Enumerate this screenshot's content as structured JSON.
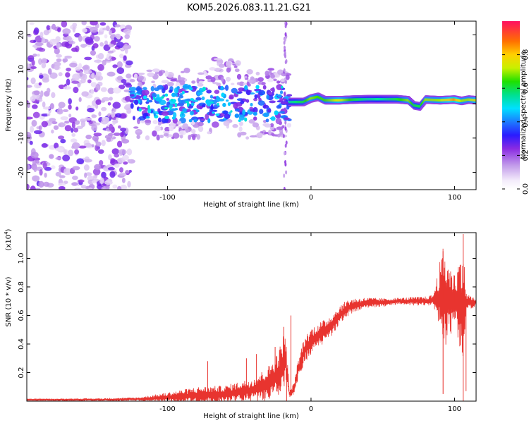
{
  "figure_title": "KOM5.2026.083.11.21.G21",
  "colors": {
    "spectrogram_purple": "#8a2be2",
    "snr_line": "#e8342f",
    "frame": "#000000"
  },
  "chart_data": [
    {
      "type": "heatmap",
      "name": "spectrogram",
      "title": "",
      "xlabel": "Height of straight line (km)",
      "ylabel": "Frequency (Hz)",
      "xlim": [
        -198,
        115
      ],
      "ylim": [
        -25,
        24
      ],
      "x_ticks": [
        -100,
        0,
        100
      ],
      "x_tick_labels": [
        "-100",
        "0",
        "100"
      ],
      "y_ticks": [
        -20,
        -10,
        0,
        10,
        20
      ],
      "y_tick_labels": [
        "-20",
        "-10",
        "0",
        "10",
        "20"
      ],
      "colorbar": {
        "label": "Normalized spectral amplitude",
        "range": [
          0.0,
          1.0
        ],
        "ticks": [
          0.0,
          0.2,
          0.4,
          0.6,
          0.8
        ],
        "tick_labels": [
          "0.0",
          "0.2",
          "0.4",
          "0.6",
          "0.8"
        ]
      },
      "ridge": {
        "x": [
          -15,
          -5,
          0,
          5,
          10,
          20,
          30,
          40,
          50,
          60,
          68,
          72,
          76,
          80,
          90,
          100,
          105,
          110,
          115
        ],
        "y": [
          0.5,
          0.5,
          1.5,
          2.0,
          1.0,
          1.0,
          1.2,
          1.3,
          1.3,
          1.3,
          1.0,
          -0.5,
          -0.8,
          1.2,
          1.0,
          1.2,
          0.8,
          1.2,
          1.0
        ],
        "amplitude": [
          0.55,
          0.6,
          0.7,
          0.65,
          0.65,
          0.75,
          0.6,
          0.55,
          0.55,
          0.6,
          0.7,
          0.6,
          0.6,
          0.7,
          0.7,
          0.85,
          0.7,
          0.7,
          0.75
        ]
      }
    },
    {
      "type": "line",
      "name": "snr",
      "title": "",
      "xlabel": "Height of straight line (km)",
      "ylabel": "SNR (10 * v/v)",
      "y_multiplier_label": "(x10",
      "y_multiplier_exponent": "4",
      "y_multiplier_close": ")",
      "xlim": [
        -198,
        115
      ],
      "ylim": [
        0.0,
        1.18
      ],
      "x_ticks": [
        -100,
        0,
        100
      ],
      "x_tick_labels": [
        "-100",
        "0",
        "100"
      ],
      "y_ticks": [
        0.2,
        0.4,
        0.6,
        0.8,
        1.0
      ],
      "y_tick_labels": [
        "0.2",
        "0.4",
        "0.6",
        "0.8",
        "1.0"
      ],
      "envelope": {
        "x": [
          -198,
          -150,
          -120,
          -100,
          -80,
          -60,
          -40,
          -30,
          -22,
          -18,
          -15,
          -12,
          -10,
          -5,
          0,
          5,
          10,
          15,
          20,
          25,
          30,
          40,
          50,
          60,
          70,
          80,
          90,
          100,
          110,
          115
        ],
        "y": [
          0.01,
          0.01,
          0.015,
          0.025,
          0.04,
          0.05,
          0.08,
          0.12,
          0.2,
          0.3,
          0.05,
          0.08,
          0.18,
          0.35,
          0.42,
          0.46,
          0.49,
          0.54,
          0.6,
          0.65,
          0.67,
          0.69,
          0.69,
          0.7,
          0.7,
          0.7,
          0.72,
          0.7,
          0.69,
          0.69
        ]
      },
      "noise_amplitude": {
        "x": [
          -198,
          -120,
          -100,
          -80,
          -60,
          -40,
          -25,
          -18,
          -15,
          -5,
          10,
          25,
          40,
          60,
          85,
          92,
          95,
          100,
          106,
          108,
          115
        ],
        "y": [
          0.005,
          0.01,
          0.03,
          0.05,
          0.05,
          0.07,
          0.12,
          0.18,
          0.02,
          0.08,
          0.07,
          0.05,
          0.03,
          0.02,
          0.03,
          0.3,
          0.25,
          0.15,
          0.35,
          0.06,
          0.02
        ]
      },
      "spikes": [
        {
          "x": -72,
          "y": 0.28
        },
        {
          "x": -45,
          "y": 0.3
        },
        {
          "x": -38,
          "y": 0.33
        },
        {
          "x": -25,
          "y": 0.38
        },
        {
          "x": -19,
          "y": 0.52
        },
        {
          "x": -14,
          "y": 0.6
        },
        {
          "x": -17,
          "y": 0.0
        },
        {
          "x": 92,
          "y": 1.05
        },
        {
          "x": 92,
          "y": 0.05
        },
        {
          "x": 100,
          "y": 0.88
        },
        {
          "x": 106,
          "y": 1.17
        },
        {
          "x": 106,
          "y": 0.0
        },
        {
          "x": 108,
          "y": 0.07
        }
      ]
    }
  ]
}
